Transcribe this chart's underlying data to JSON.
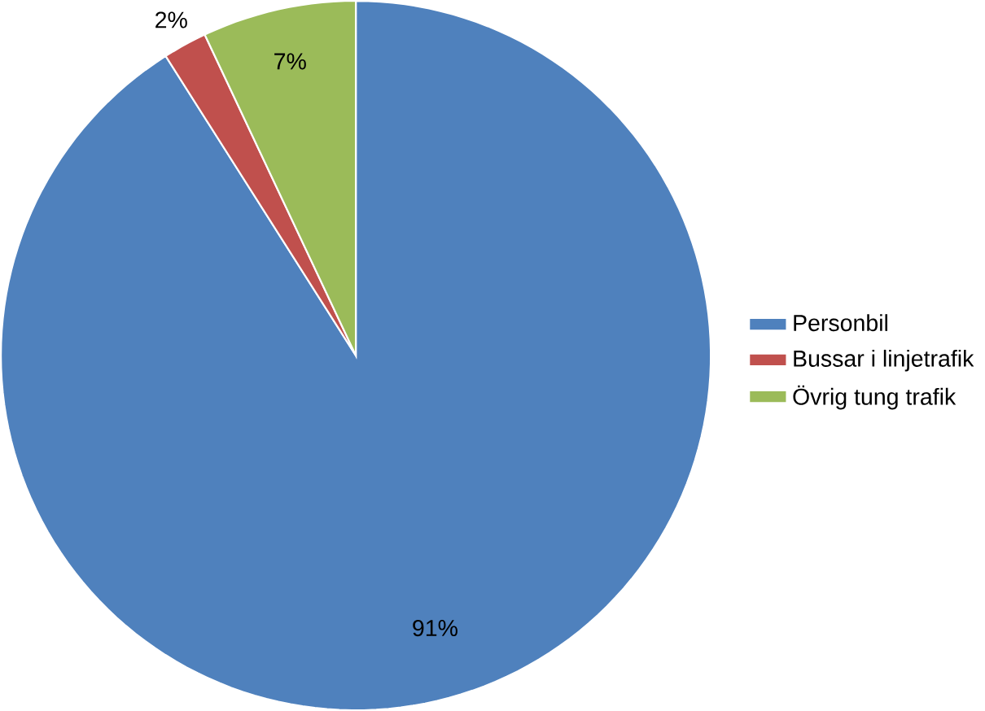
{
  "chart_data": {
    "type": "pie",
    "categories": [
      "Personbil",
      "Bussar i linjetrafik",
      "Övrig tung trafik"
    ],
    "values": [
      91,
      2,
      7
    ],
    "colors": [
      "#4f81bd",
      "#c0504d",
      "#9bbb59"
    ],
    "value_labels": [
      "91%",
      "2%",
      "7%"
    ],
    "legend": "right"
  }
}
